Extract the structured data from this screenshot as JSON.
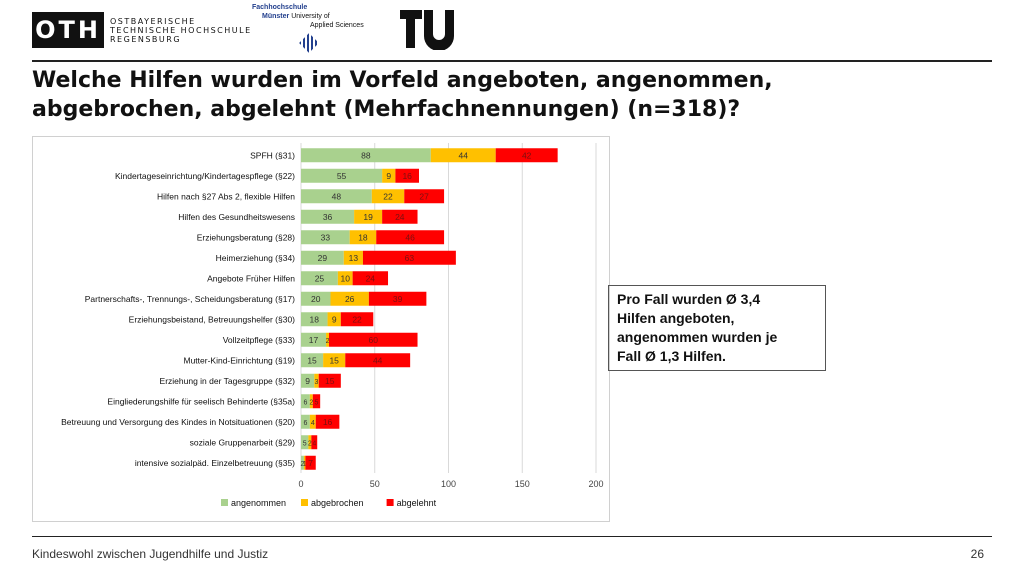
{
  "header": {
    "oth_logo": "OTH",
    "oth_line1": "OSTBAYERISCHE",
    "oth_line2": "TECHNISCHE HOCHSCHULE",
    "oth_line3": "REGENSBURG",
    "fh_top": "Fachhochschule",
    "fh_city": "Münster",
    "fh_line1": "University of",
    "fh_line2": "Applied Sciences",
    "tu_logo": "TU berlin"
  },
  "title": {
    "line1": "Welche Hilfen wurden im Vorfeld angeboten, angenommen,",
    "line2": "abgebrochen, abgelehnt (Mehrfachnennungen) (n=318)?"
  },
  "info_box": {
    "line1": "Pro Fall wurden Ø 3,4",
    "line2": "Hilfen angeboten,",
    "line3": "angenommen wurden je",
    "line4": "Fall Ø 1,3 Hilfen."
  },
  "footer": {
    "text": "Kindeswohl zwischen Jugendhilfe und Justiz",
    "page": "26"
  },
  "colors": {
    "angenommen": "#a9d18e",
    "abgebrochen": "#ffc000",
    "abgelehnt": "#ff0000"
  },
  "chart_data": {
    "type": "bar",
    "orientation": "horizontal",
    "stacked": true,
    "categories": [
      "SPFH (§31)",
      "Kindertageseinrichtung/Kindertagespflege (§22)",
      "Hilfen nach §27 Abs 2, flexible Hilfen",
      "Hilfen des Gesundheitswesens",
      "Erziehungsberatung (§28)",
      "Heimerziehung (§34)",
      "Angebote Früher Hilfen",
      "Partnerschafts-, Trennungs-, Scheidungsberatung (§17)",
      "Erziehungsbeistand, Betreuungshelfer (§30)",
      "Vollzeitpflege (§33)",
      "Mutter-Kind-Einrichtung (§19)",
      "Erziehung in der Tagesgruppe (§32)",
      "Eingliederungshilfe für seelisch Behinderte (§35a)",
      "Betreuung und Versorgung des Kindes in Notsituationen (§20)",
      "soziale Gruppenarbeit (§29)",
      "intensive sozialpäd. Einzelbetreuung (§35)"
    ],
    "series": [
      {
        "name": "angenommen",
        "values": [
          88,
          55,
          48,
          36,
          33,
          29,
          25,
          20,
          18,
          17,
          15,
          9,
          6,
          6,
          5,
          2
        ]
      },
      {
        "name": "abgebrochen",
        "values": [
          44,
          9,
          22,
          19,
          18,
          13,
          10,
          26,
          9,
          2,
          15,
          3,
          2,
          4,
          2,
          1
        ]
      },
      {
        "name": "abgelehnt",
        "values": [
          42,
          16,
          27,
          24,
          46,
          63,
          24,
          39,
          22,
          60,
          44,
          15,
          5,
          16,
          4,
          7
        ]
      }
    ],
    "xticks": [
      "0",
      "50",
      "100",
      "150",
      "200"
    ],
    "xlim": [
      0,
      200
    ],
    "grid": true,
    "legend_position": "bottom"
  }
}
